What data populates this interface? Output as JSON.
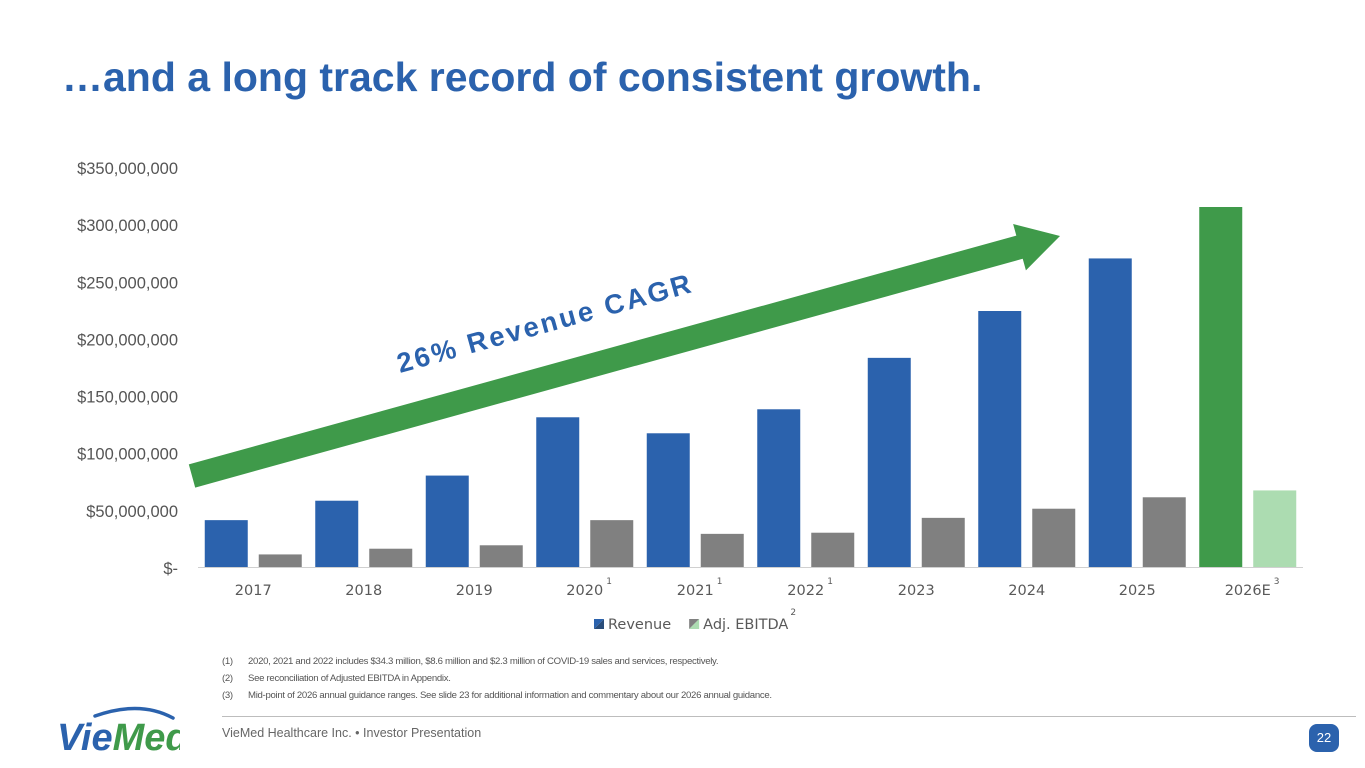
{
  "slide": {
    "title": "…and a long track record of consistent growth.",
    "page_number": "22",
    "footer_text": "VieMed Healthcare Inc.  •  Investor Presentation",
    "logo_text": "VieMed",
    "cagr_label": "26% Revenue CAGR"
  },
  "footnotes": [
    {
      "num": "(1)",
      "text": "2020, 2021 and 2022 includes $34.3 million, $8.6 million and $2.3 million of COVID-19 sales and services, respectively."
    },
    {
      "num": "(2)",
      "text": "See reconciliation of Adjusted EBITDA in Appendix."
    },
    {
      "num": "(3)",
      "text": "Mid-point of 2026 annual guidance ranges. See slide 23 for additional information and commentary about our 2026 annual guidance."
    }
  ],
  "chart_data": {
    "type": "bar",
    "title": "",
    "xlabel": "",
    "ylabel": "",
    "ylim": [
      0,
      350000000
    ],
    "yticks": [
      0,
      50000000,
      100000000,
      150000000,
      200000000,
      250000000,
      300000000,
      350000000
    ],
    "ytick_labels": [
      "$-",
      "$50,000,000",
      "$100,000,000",
      "$150,000,000",
      "$200,000,000",
      "$250,000,000",
      "$300,000,000",
      "$350,000,000"
    ],
    "categories": [
      "2017",
      "2018",
      "2019",
      "2020",
      "2021",
      "2022",
      "2023",
      "2024",
      "2025",
      "2026E"
    ],
    "category_superscripts": [
      "",
      "",
      "",
      "1",
      "1",
      "1",
      "",
      "",
      "",
      "3"
    ],
    "series": [
      {
        "name": "Revenue",
        "values": [
          41000000,
          58000000,
          80000000,
          131000000,
          117000000,
          138000000,
          183000000,
          224000000,
          270000000,
          315000000
        ],
        "color": "#2b62ad",
        "highlight_color": "#3f9a4a"
      },
      {
        "name": "Adj. EBITDA",
        "name_superscript": "2",
        "values": [
          11000000,
          16000000,
          19000000,
          41000000,
          29000000,
          30000000,
          43000000,
          51000000,
          61000000,
          67000000
        ],
        "color": "#808080",
        "highlight_color": "#acdcb1"
      }
    ],
    "highlight_category": "2026E",
    "legend": "bottom-center",
    "grid": false,
    "annotation": {
      "text": "26% Revenue CAGR",
      "type": "arrow",
      "color": "#3f9a4a"
    }
  }
}
